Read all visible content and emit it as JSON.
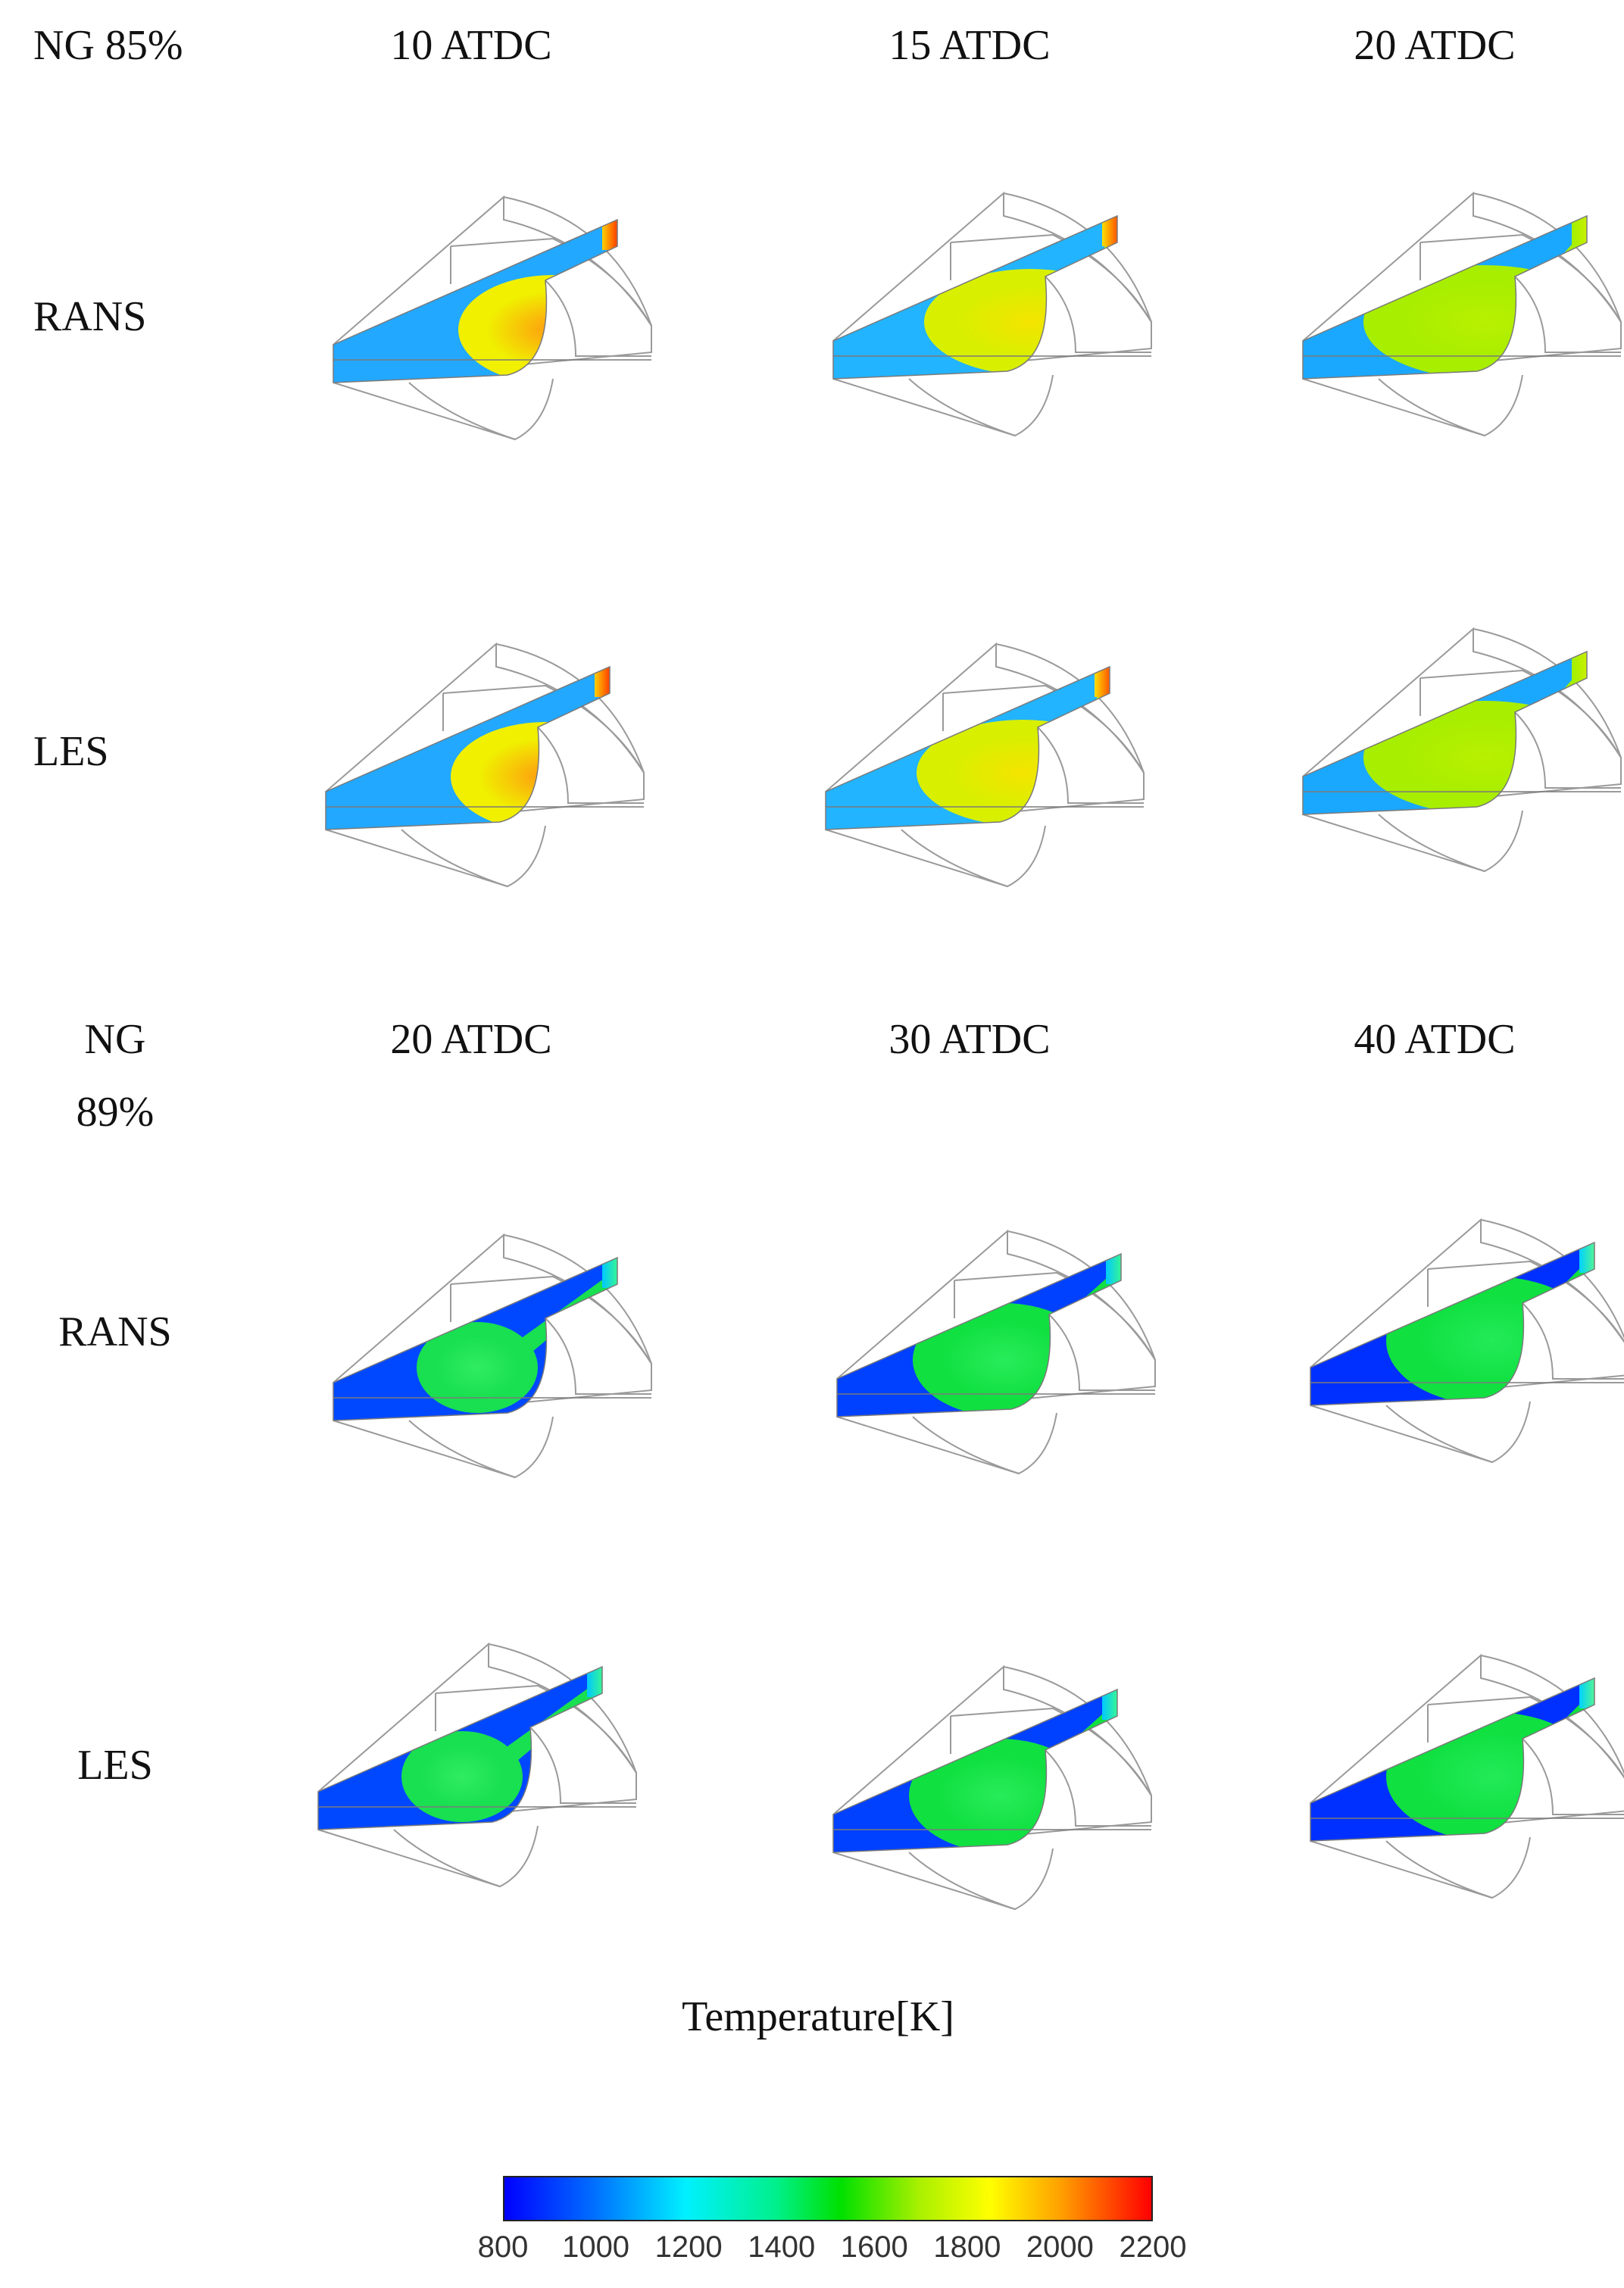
{
  "block1": {
    "header": "NG 85%",
    "columns": [
      "10 ATDC",
      "15 ATDC",
      "20 ATDC"
    ],
    "rows": [
      "RANS",
      "LES"
    ]
  },
  "block2": {
    "header_line1": "NG",
    "header_line2": "89%",
    "columns": [
      "20 ATDC",
      "30 ATDC",
      "40 ATDC"
    ],
    "rows": [
      "RANS",
      "LES"
    ]
  },
  "colorbar": {
    "title": "Temperature[K]",
    "ticks": [
      "800",
      "1000",
      "1200",
      "1400",
      "1600",
      "1800",
      "2000",
      "2200"
    ]
  }
}
